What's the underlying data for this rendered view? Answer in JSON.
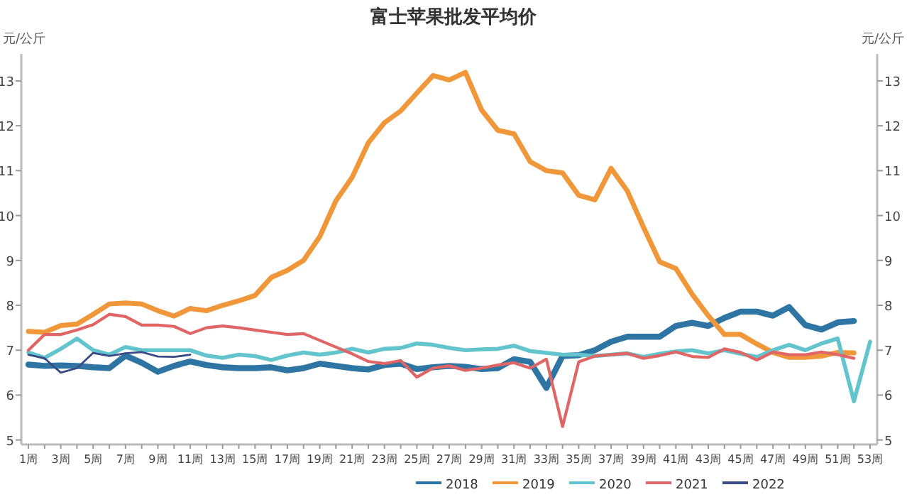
{
  "chart_data": {
    "type": "line",
    "title": "富士苹果批发平均价",
    "ylabel": "元/公斤",
    "y2label": "元/公斤",
    "categories": [
      "1周",
      null,
      "3周",
      null,
      "5周",
      null,
      "7周",
      null,
      "9周",
      null,
      "11周",
      null,
      "13周",
      null,
      "15周",
      null,
      "17周",
      null,
      "19周",
      null,
      "21周",
      null,
      "23周",
      null,
      "25周",
      null,
      "27周",
      null,
      "29周",
      null,
      "31周",
      null,
      "33周",
      null,
      "35周",
      null,
      "37周",
      null,
      "39周",
      null,
      "41周",
      null,
      "43周",
      null,
      "45周",
      null,
      "47周",
      null,
      "49周",
      null,
      "51周",
      null,
      "53周"
    ],
    "ylim": [
      4.9,
      13.6
    ],
    "yticks": [
      5,
      6,
      7,
      8,
      9,
      10,
      11,
      12,
      13
    ],
    "y2lim": [
      4.9,
      13.6
    ],
    "y2ticks": [
      5,
      6,
      7,
      8,
      9,
      10,
      11,
      12,
      13
    ],
    "legend": "bottom",
    "marker": "none",
    "series": [
      {
        "name": "2018",
        "color": "#2e75a3",
        "values": [
          6.68,
          6.65,
          6.66,
          6.65,
          6.62,
          6.6,
          6.88,
          6.72,
          6.52,
          6.65,
          6.75,
          6.67,
          6.62,
          6.6,
          6.6,
          6.62,
          6.55,
          6.6,
          6.7,
          6.65,
          6.6,
          6.57,
          6.67,
          6.7,
          6.58,
          6.62,
          6.65,
          6.63,
          6.58,
          6.6,
          6.8,
          6.74,
          6.16,
          6.87,
          6.89,
          7.0,
          7.19,
          7.3,
          7.3,
          7.3,
          7.54,
          7.61,
          7.54,
          7.72,
          7.86,
          7.86,
          7.77,
          7.96,
          7.56,
          7.46,
          7.62,
          7.65,
          null
        ]
      },
      {
        "name": "2019",
        "color": "#f0973a",
        "values": [
          7.42,
          7.4,
          7.55,
          7.58,
          7.8,
          8.03,
          8.05,
          8.03,
          7.88,
          7.76,
          7.93,
          7.88,
          8.0,
          8.1,
          8.22,
          8.62,
          8.78,
          9.0,
          9.53,
          10.33,
          10.85,
          11.62,
          12.07,
          12.33,
          12.73,
          13.12,
          13.02,
          13.19,
          12.35,
          11.9,
          11.82,
          11.2,
          11.0,
          10.95,
          10.45,
          10.35,
          11.05,
          10.55,
          9.74,
          8.97,
          8.82,
          8.25,
          7.77,
          7.35,
          7.35,
          7.14,
          6.95,
          6.84,
          6.84,
          6.87,
          6.95,
          6.94,
          null
        ]
      },
      {
        "name": "2020",
        "color": "#62c4cc",
        "values": [
          6.95,
          6.83,
          7.03,
          7.26,
          7.0,
          6.9,
          7.07,
          7.0,
          7.0,
          7.0,
          7.0,
          6.88,
          6.83,
          6.9,
          6.87,
          6.78,
          6.88,
          6.95,
          6.9,
          6.95,
          7.03,
          6.95,
          7.03,
          7.05,
          7.15,
          7.12,
          7.05,
          7.0,
          7.02,
          7.03,
          7.1,
          6.98,
          6.94,
          6.9,
          6.9,
          6.87,
          6.9,
          6.93,
          6.85,
          6.92,
          6.97,
          7.0,
          6.93,
          7.0,
          6.92,
          6.85,
          7.0,
          7.12,
          7.0,
          7.15,
          7.26,
          5.86,
          7.19
        ]
      },
      {
        "name": "2021",
        "color": "#e06666",
        "values": [
          7.0,
          7.35,
          7.35,
          7.45,
          7.57,
          7.8,
          7.75,
          7.56,
          7.56,
          7.53,
          7.37,
          7.5,
          7.54,
          7.5,
          7.45,
          7.4,
          7.35,
          7.37,
          7.22,
          7.07,
          6.92,
          6.75,
          6.7,
          6.77,
          6.4,
          6.6,
          6.65,
          6.55,
          6.6,
          6.67,
          6.72,
          6.6,
          6.8,
          5.3,
          6.74,
          6.87,
          6.9,
          6.93,
          6.82,
          6.88,
          6.96,
          6.86,
          6.84,
          7.03,
          6.95,
          6.78,
          6.96,
          6.9,
          6.9,
          6.96,
          6.9,
          6.82,
          null
        ]
      },
      {
        "name": "2022",
        "color": "#3a4a84",
        "values": [
          6.9,
          6.82,
          6.5,
          6.6,
          6.94,
          6.87,
          6.93,
          6.96,
          6.86,
          6.85,
          6.9,
          null,
          null,
          null,
          null,
          null,
          null,
          null,
          null,
          null,
          null,
          null,
          null,
          null,
          null,
          null,
          null,
          null,
          null,
          null,
          null,
          null,
          null,
          null,
          null,
          null,
          null,
          null,
          null,
          null,
          null,
          null,
          null,
          null,
          null,
          null,
          null,
          null,
          null,
          null,
          null,
          null,
          null
        ]
      }
    ]
  }
}
